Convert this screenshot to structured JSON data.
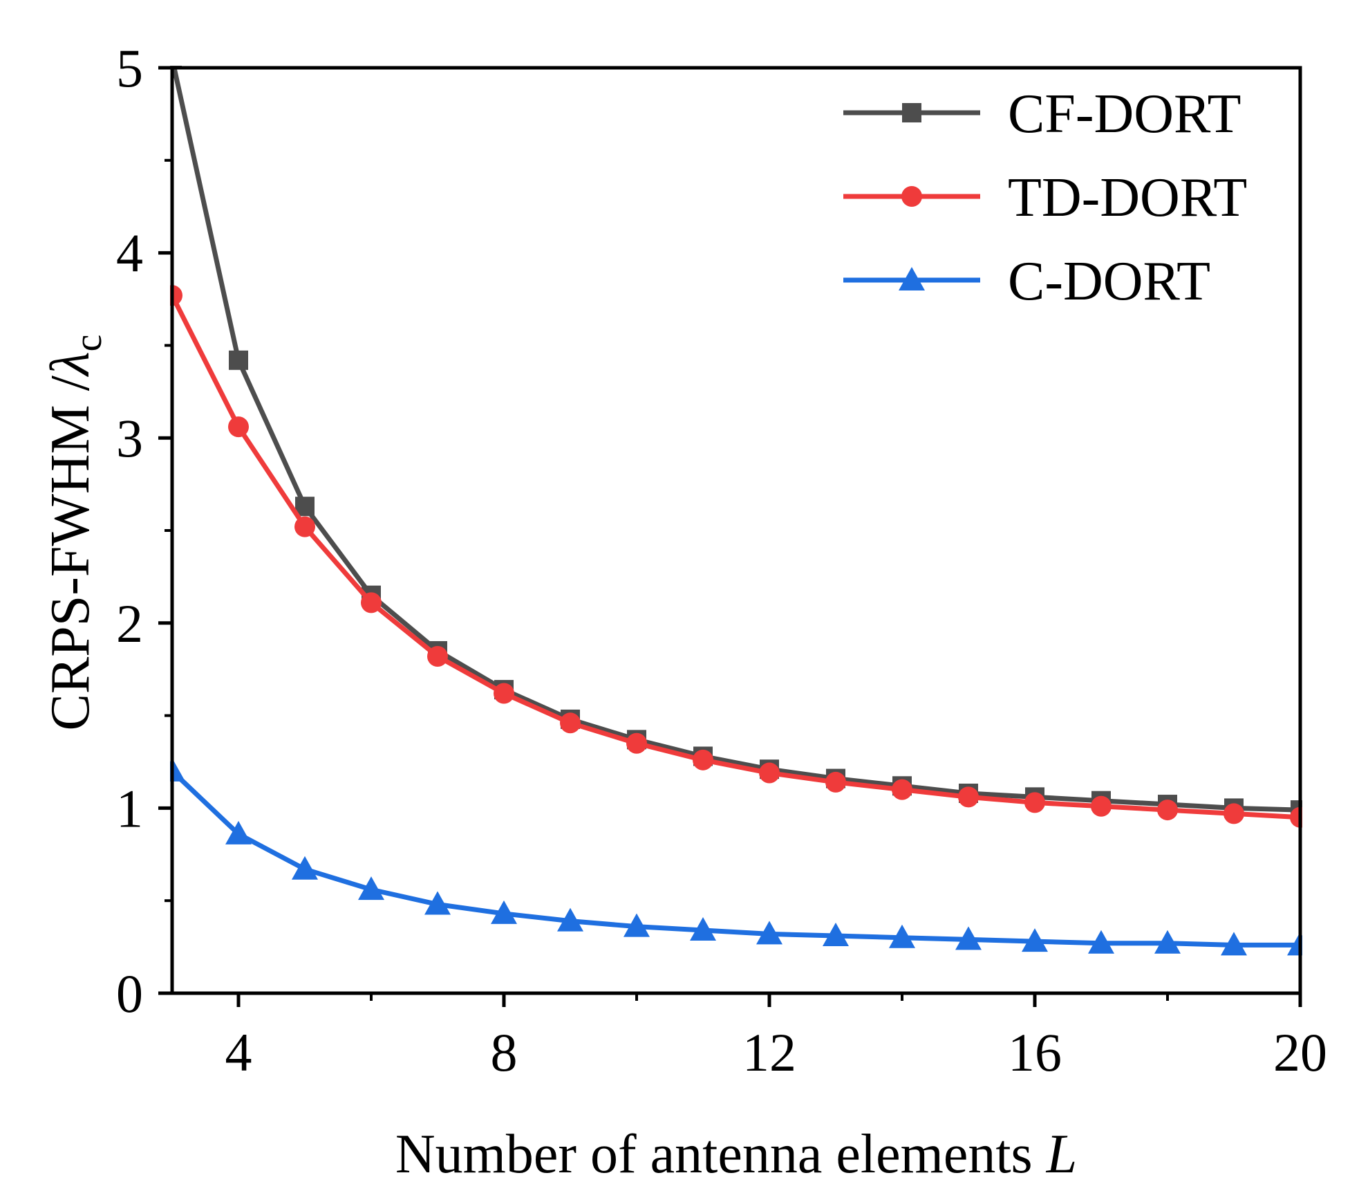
{
  "chart_data": {
    "type": "line",
    "xlabel": "Number of antenna elements ",
    "xlabel_var": "L",
    "ylabel": "CRPS-FWHM /",
    "ylabel_symbol": "λ",
    "ylabel_sub": "c",
    "xlim": [
      3,
      20
    ],
    "ylim": [
      0,
      5
    ],
    "xticks": [
      4,
      8,
      12,
      16,
      20
    ],
    "yticks": [
      0,
      1,
      2,
      3,
      4,
      5
    ],
    "grid": false,
    "legend_position": "top-right",
    "x": [
      3,
      4,
      5,
      6,
      7,
      8,
      9,
      10,
      11,
      12,
      13,
      14,
      15,
      16,
      17,
      18,
      19,
      20
    ],
    "series": [
      {
        "name": "CF-DORT",
        "color": "#4d4d4d",
        "marker": "square",
        "values": [
          5.05,
          3.42,
          2.63,
          2.15,
          1.85,
          1.64,
          1.48,
          1.37,
          1.28,
          1.21,
          1.16,
          1.12,
          1.08,
          1.06,
          1.04,
          1.02,
          1.0,
          0.99
        ]
      },
      {
        "name": "TD-DORT",
        "color": "#ef3b3b",
        "marker": "circle",
        "values": [
          3.77,
          3.06,
          2.52,
          2.11,
          1.82,
          1.62,
          1.46,
          1.35,
          1.26,
          1.19,
          1.14,
          1.1,
          1.06,
          1.03,
          1.01,
          0.99,
          0.97,
          0.95
        ]
      },
      {
        "name": "C-DORT",
        "color": "#1f6fe0",
        "marker": "triangle",
        "values": [
          1.2,
          0.86,
          0.67,
          0.56,
          0.48,
          0.43,
          0.39,
          0.36,
          0.34,
          0.32,
          0.31,
          0.3,
          0.29,
          0.28,
          0.27,
          0.27,
          0.26,
          0.26
        ]
      }
    ]
  }
}
